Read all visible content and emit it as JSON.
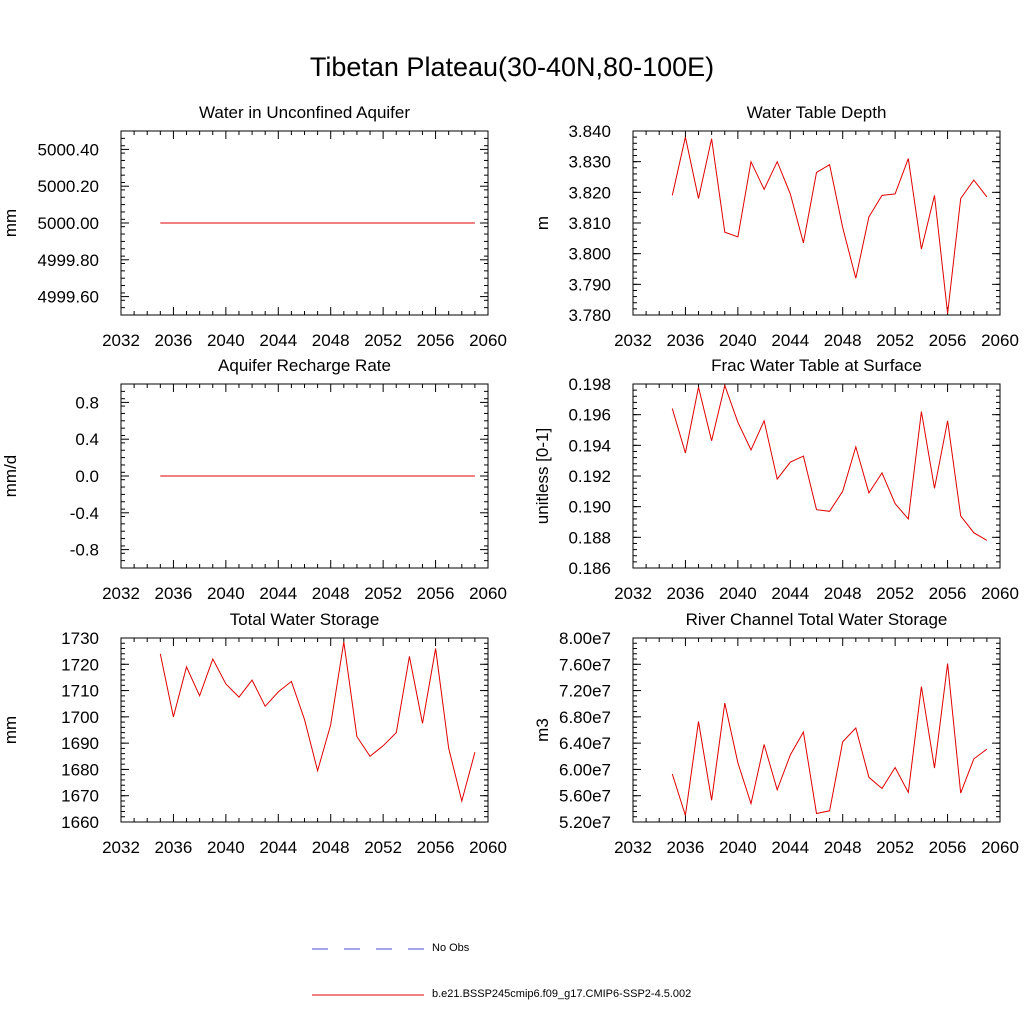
{
  "figure": {
    "title": "Tibetan Plateau(30-40N,80-100E)"
  },
  "legend": {
    "items": [
      {
        "label": "No Obs",
        "color": "#4a4ad0",
        "style": "dashed"
      },
      {
        "label": "b.e21.BSSP245cmip6.f09_g17.CMIP6-SSP2-4.5.002",
        "color": "#e00000",
        "style": "solid"
      }
    ]
  },
  "chart_data": [
    {
      "type": "line",
      "title": "Water in Unconfined Aquifer",
      "ylabel": "mm",
      "xlim": [
        2032,
        2060
      ],
      "ylim": [
        4999.5,
        5000.5
      ],
      "xticks": [
        2032,
        2036,
        2040,
        2044,
        2048,
        2052,
        2056,
        2060
      ],
      "yticks": [
        4999.6,
        4999.8,
        5000.0,
        5000.2,
        5000.4
      ],
      "ytick_labels": [
        "4999.60",
        "4999.80",
        "5000.00",
        "5000.20",
        "5000.40"
      ],
      "series": [
        {
          "color": "#e00000",
          "x": [
            2035,
            2059
          ],
          "y": [
            5000.0,
            5000.0
          ]
        }
      ]
    },
    {
      "type": "line",
      "title": "Water Table Depth",
      "ylabel": "m",
      "xlim": [
        2032,
        2060
      ],
      "ylim": [
        3.78,
        3.84
      ],
      "xticks": [
        2032,
        2036,
        2040,
        2044,
        2048,
        2052,
        2056,
        2060
      ],
      "yticks": [
        3.78,
        3.79,
        3.8,
        3.81,
        3.82,
        3.83,
        3.84
      ],
      "ytick_labels": [
        "3.780",
        "3.790",
        "3.800",
        "3.810",
        "3.820",
        "3.830",
        "3.840"
      ],
      "series": [
        {
          "color": "#e00000",
          "x": [
            2035,
            2036,
            2037,
            2038,
            2039,
            2040,
            2041,
            2042,
            2043,
            2044,
            2045,
            2046,
            2047,
            2048,
            2049,
            2050,
            2051,
            2052,
            2053,
            2054,
            2055,
            2056,
            2057,
            2058,
            2059
          ],
          "y": [
            3.819,
            3.838,
            3.818,
            3.8375,
            3.807,
            3.8055,
            3.83,
            3.821,
            3.83,
            3.8195,
            3.8035,
            3.8265,
            3.829,
            3.8085,
            3.792,
            3.812,
            3.819,
            3.8195,
            3.831,
            3.8015,
            3.819,
            3.7805,
            3.818,
            3.824,
            3.8185
          ]
        }
      ]
    },
    {
      "type": "line",
      "title": "Aquifer Recharge Rate",
      "ylabel": "mm/d",
      "xlim": [
        2032,
        2060
      ],
      "ylim": [
        -1.0,
        1.0
      ],
      "xticks": [
        2032,
        2036,
        2040,
        2044,
        2048,
        2052,
        2056,
        2060
      ],
      "yticks": [
        -0.8,
        -0.4,
        0.0,
        0.4,
        0.8
      ],
      "ytick_labels": [
        "-0.8",
        "-0.4",
        "0.0",
        "0.4",
        "0.8"
      ],
      "series": [
        {
          "color": "#e00000",
          "x": [
            2035,
            2059
          ],
          "y": [
            0.0,
            0.0
          ]
        }
      ]
    },
    {
      "type": "line",
      "title": "Frac Water Table at Surface",
      "ylabel": "unitless [0-1]",
      "xlim": [
        2032,
        2060
      ],
      "ylim": [
        0.186,
        0.198
      ],
      "xticks": [
        2032,
        2036,
        2040,
        2044,
        2048,
        2052,
        2056,
        2060
      ],
      "yticks": [
        0.186,
        0.188,
        0.19,
        0.192,
        0.194,
        0.196,
        0.198
      ],
      "ytick_labels": [
        "0.186",
        "0.188",
        "0.190",
        "0.192",
        "0.194",
        "0.196",
        "0.198"
      ],
      "series": [
        {
          "color": "#e00000",
          "x": [
            2035,
            2036,
            2037,
            2038,
            2039,
            2040,
            2041,
            2042,
            2043,
            2044,
            2045,
            2046,
            2047,
            2048,
            2049,
            2050,
            2051,
            2052,
            2053,
            2054,
            2055,
            2056,
            2057,
            2058,
            2059
          ],
          "y": [
            0.1964,
            0.1935,
            0.1978,
            0.1943,
            0.1979,
            0.1955,
            0.1937,
            0.1956,
            0.1918,
            0.1929,
            0.1933,
            0.1898,
            0.1897,
            0.191,
            0.1939,
            0.1909,
            0.1922,
            0.1902,
            0.1892,
            0.1962,
            0.1912,
            0.1956,
            0.1894,
            0.1883,
            0.1878
          ]
        }
      ]
    },
    {
      "type": "line",
      "title": "Total Water Storage",
      "ylabel": "mm",
      "xlim": [
        2032,
        2060
      ],
      "ylim": [
        1660,
        1730
      ],
      "xticks": [
        2032,
        2036,
        2040,
        2044,
        2048,
        2052,
        2056,
        2060
      ],
      "yticks": [
        1660,
        1670,
        1680,
        1690,
        1700,
        1710,
        1720,
        1730
      ],
      "ytick_labels": [
        "1660",
        "1670",
        "1680",
        "1690",
        "1700",
        "1710",
        "1720",
        "1730"
      ],
      "series": [
        {
          "color": "#e00000",
          "x": [
            2035,
            2036,
            2037,
            2038,
            2039,
            2040,
            2041,
            2042,
            2043,
            2044,
            2045,
            2046,
            2047,
            2048,
            2049,
            2050,
            2051,
            2052,
            2053,
            2054,
            2055,
            2056,
            2057,
            2058,
            2059
          ],
          "y": [
            1724,
            1700,
            1719,
            1708,
            1722,
            1712.5,
            1707.5,
            1714,
            1704,
            1709.5,
            1713.5,
            1699,
            1679.5,
            1697,
            1728.5,
            1692.5,
            1685,
            1689,
            1694,
            1723,
            1697.5,
            1726,
            1688,
            1668,
            1686.5
          ]
        }
      ]
    },
    {
      "type": "line",
      "title": "River Channel Total Water Storage",
      "ylabel": "m3",
      "xlim": [
        2032,
        2060
      ],
      "ylim": [
        52000000,
        80000000
      ],
      "xticks": [
        2032,
        2036,
        2040,
        2044,
        2048,
        2052,
        2056,
        2060
      ],
      "yticks": [
        52000000,
        56000000,
        60000000,
        64000000,
        68000000,
        72000000,
        76000000,
        80000000
      ],
      "ytick_labels": [
        "5.20e7",
        "5.60e7",
        "6.00e7",
        "6.40e7",
        "6.80e7",
        "7.20e7",
        "7.60e7",
        "8.00e7"
      ],
      "series": [
        {
          "color": "#e00000",
          "x": [
            2035,
            2036,
            2037,
            2038,
            2039,
            2040,
            2041,
            2042,
            2043,
            2044,
            2045,
            2046,
            2047,
            2048,
            2049,
            2050,
            2051,
            2052,
            2053,
            2054,
            2055,
            2056,
            2057,
            2058,
            2059
          ],
          "y": [
            59300000,
            53000000,
            67300000,
            55300000,
            70100000,
            61000000,
            54800000,
            63800000,
            56900000,
            62200000,
            65700000,
            53300000,
            53700000,
            64200000,
            66300000,
            58800000,
            57100000,
            60300000,
            56500000,
            72600000,
            60200000,
            76100000,
            56400000,
            61600000,
            63100000
          ]
        }
      ]
    }
  ]
}
